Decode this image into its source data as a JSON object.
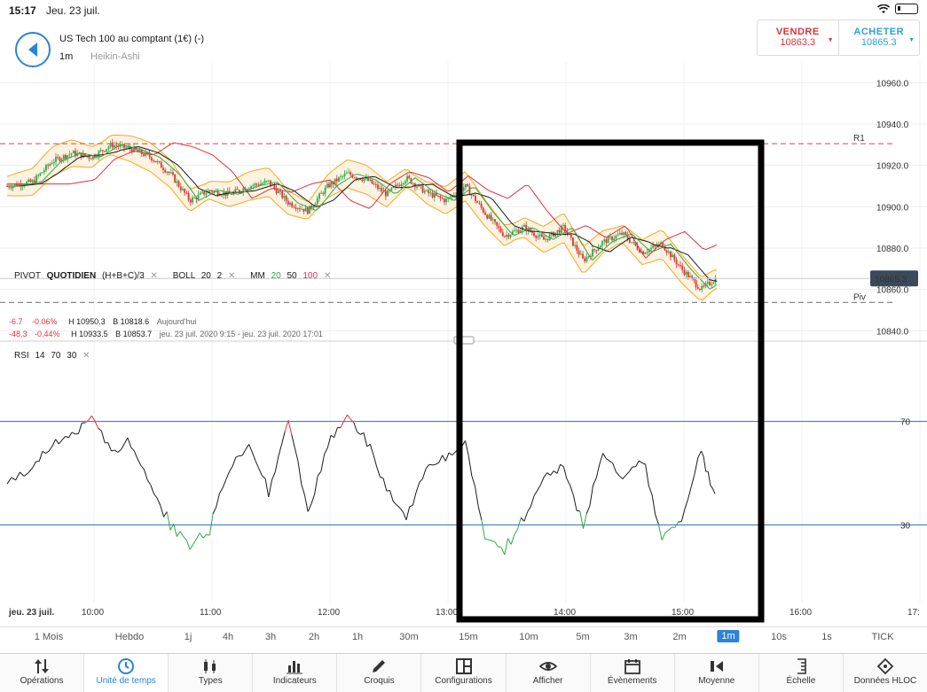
{
  "status": {
    "time": "15:17",
    "date": "Jeu. 23 juil."
  },
  "instrument": {
    "name": "US Tech 100 au comptant (1€) (-)",
    "timeframe": "1m",
    "chart_type": "Heikin-Ashi"
  },
  "trade": {
    "sell_label": "VENDRE",
    "sell_price": "10863.3",
    "buy_label": "ACHETER",
    "buy_price": "10865.3"
  },
  "price_axis": {
    "ticks": [
      "10960.0",
      "10940.0",
      "10920.0",
      "10900.0",
      "10880.0",
      "10860.0",
      "10840.0"
    ],
    "current_price": "10865.3",
    "r1_label": "R1",
    "piv_label": "Piv"
  },
  "indicators": {
    "pivot": {
      "label": "PIVOT",
      "name": "QUOTIDIEN",
      "params": "(H+B+C)/3"
    },
    "boll": {
      "label": "BOLL",
      "p1": "20",
      "p2": "2"
    },
    "mm": {
      "label": "MM",
      "p1": "20",
      "p2": "50",
      "p3": "100"
    },
    "row1": {
      "chg": "-6.7",
      "pct": "-0.06%",
      "high": "H 10950.3",
      "low": "B 10818.6",
      "period": "Aujourd'hui"
    },
    "row2": {
      "chg": "-48.3",
      "pct": "-0.44%",
      "high": "H 10933.5",
      "low": "B 10853.7",
      "period": "jeu. 23 juil. 2020 9:15 - jeu. 23 juil. 2020 17:01"
    }
  },
  "rsi": {
    "label": "RSI",
    "p1": "14",
    "p2": "70",
    "p3": "30",
    "level_high": "70",
    "level_low": "30"
  },
  "time_axis": {
    "date_label": "jeu. 23 juil.",
    "ticks": [
      "10:00",
      "11:00",
      "12:00",
      "13:00",
      "14:00",
      "15:00",
      "16:00",
      "17:"
    ]
  },
  "timeframes": [
    "1 Mois",
    "Hebdo",
    "1j",
    "4h",
    "3h",
    "2h",
    "1h",
    "30m",
    "15m",
    "10m",
    "5m",
    "3m",
    "2m",
    "1m",
    "10s",
    "1s",
    "TICK"
  ],
  "active_timeframe": "1m",
  "toolbar": [
    {
      "label": "Opérations",
      "icon": "sort-arrows-icon"
    },
    {
      "label": "Unité de temps",
      "icon": "clock-icon"
    },
    {
      "label": "Types",
      "icon": "candlestick-icon"
    },
    {
      "label": "Indicateurs",
      "icon": "bar-chart-icon"
    },
    {
      "label": "Croquis",
      "icon": "pencil-icon"
    },
    {
      "label": "Configurations",
      "icon": "layout-icon"
    },
    {
      "label": "Afficher",
      "icon": "eye-icon"
    },
    {
      "label": "Évènements",
      "icon": "calendar-icon"
    },
    {
      "label": "Moyenne",
      "icon": "average-icon"
    },
    {
      "label": "Échelle",
      "icon": "scale-icon"
    },
    {
      "label": "Données HLOC",
      "icon": "crosshair-icon"
    }
  ],
  "active_tool": "Unité de temps",
  "colors": {
    "accent": "#2b84d6",
    "up_candle": "#2ea84a",
    "down_candle": "#e0323a",
    "bollinger": "#f5a623",
    "ma20": "#2ea84a",
    "ma50": "#1a1a1a",
    "ma100": "#e0323a",
    "rsi_line": "#1a1a1a",
    "rsi_level": "#2b6ea8",
    "highlight_box": "#000000"
  },
  "chart_data": {
    "type": "line",
    "title": "US Tech 100 au comptant (1€) (-)",
    "x_ticks": [
      "10:00",
      "11:00",
      "12:00",
      "13:00",
      "14:00",
      "15:00",
      "16:00"
    ],
    "price_ylim": [
      10835,
      10970
    ],
    "price_series": [
      {
        "t": "09:17",
        "v": 10910
      },
      {
        "t": "09:30",
        "v": 10912
      },
      {
        "t": "09:40",
        "v": 10922
      },
      {
        "t": "09:50",
        "v": 10926
      },
      {
        "t": "10:00",
        "v": 10924
      },
      {
        "t": "10:10",
        "v": 10930
      },
      {
        "t": "10:20",
        "v": 10928
      },
      {
        "t": "10:30",
        "v": 10924
      },
      {
        "t": "10:40",
        "v": 10916
      },
      {
        "t": "10:50",
        "v": 10903
      },
      {
        "t": "11:00",
        "v": 10908
      },
      {
        "t": "11:10",
        "v": 10906
      },
      {
        "t": "11:20",
        "v": 10910
      },
      {
        "t": "11:30",
        "v": 10912
      },
      {
        "t": "11:40",
        "v": 10902
      },
      {
        "t": "11:50",
        "v": 10898
      },
      {
        "t": "12:00",
        "v": 10910
      },
      {
        "t": "12:10",
        "v": 10916
      },
      {
        "t": "12:20",
        "v": 10913
      },
      {
        "t": "12:30",
        "v": 10906
      },
      {
        "t": "12:40",
        "v": 10914
      },
      {
        "t": "12:50",
        "v": 10907
      },
      {
        "t": "13:00",
        "v": 10903
      },
      {
        "t": "13:10",
        "v": 10910
      },
      {
        "t": "13:20",
        "v": 10897
      },
      {
        "t": "13:30",
        "v": 10886
      },
      {
        "t": "13:40",
        "v": 10890
      },
      {
        "t": "13:50",
        "v": 10884
      },
      {
        "t": "14:00",
        "v": 10890
      },
      {
        "t": "14:10",
        "v": 10874
      },
      {
        "t": "14:20",
        "v": 10883
      },
      {
        "t": "14:30",
        "v": 10887
      },
      {
        "t": "14:40",
        "v": 10878
      },
      {
        "t": "14:50",
        "v": 10882
      },
      {
        "t": "15:00",
        "v": 10870
      },
      {
        "t": "15:10",
        "v": 10860
      },
      {
        "t": "15:17",
        "v": 10865
      }
    ],
    "rsi_ylim": [
      0,
      100
    ],
    "rsi_series": [
      {
        "t": "09:17",
        "v": 45
      },
      {
        "t": "09:30",
        "v": 52
      },
      {
        "t": "09:40",
        "v": 60
      },
      {
        "t": "09:50",
        "v": 65
      },
      {
        "t": "10:00",
        "v": 72
      },
      {
        "t": "10:10",
        "v": 58
      },
      {
        "t": "10:20",
        "v": 62
      },
      {
        "t": "10:30",
        "v": 45
      },
      {
        "t": "10:40",
        "v": 30
      },
      {
        "t": "10:50",
        "v": 22
      },
      {
        "t": "11:00",
        "v": 28
      },
      {
        "t": "11:10",
        "v": 52
      },
      {
        "t": "11:20",
        "v": 62
      },
      {
        "t": "11:30",
        "v": 42
      },
      {
        "t": "11:40",
        "v": 71
      },
      {
        "t": "11:50",
        "v": 35
      },
      {
        "t": "12:00",
        "v": 60
      },
      {
        "t": "12:10",
        "v": 72
      },
      {
        "t": "12:20",
        "v": 62
      },
      {
        "t": "12:30",
        "v": 45
      },
      {
        "t": "12:40",
        "v": 33
      },
      {
        "t": "12:50",
        "v": 52
      },
      {
        "t": "13:00",
        "v": 55
      },
      {
        "t": "13:10",
        "v": 62
      },
      {
        "t": "13:20",
        "v": 26
      },
      {
        "t": "13:30",
        "v": 20
      },
      {
        "t": "13:40",
        "v": 32
      },
      {
        "t": "13:50",
        "v": 48
      },
      {
        "t": "14:00",
        "v": 52
      },
      {
        "t": "14:10",
        "v": 30
      },
      {
        "t": "14:20",
        "v": 58
      },
      {
        "t": "14:30",
        "v": 48
      },
      {
        "t": "14:40",
        "v": 56
      },
      {
        "t": "14:50",
        "v": 25
      },
      {
        "t": "15:00",
        "v": 32
      },
      {
        "t": "15:10",
        "v": 58
      },
      {
        "t": "15:17",
        "v": 42
      }
    ],
    "rsi_levels": [
      70,
      30
    ]
  }
}
